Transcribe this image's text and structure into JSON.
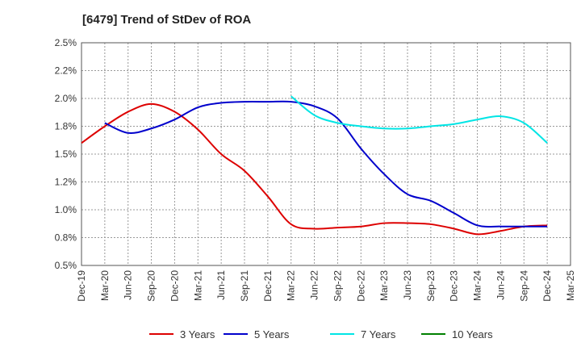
{
  "chart_data": {
    "type": "line",
    "title": "[6479]  Trend of StDev of ROA",
    "xlabel": "",
    "ylabel": "",
    "ylim": [
      0.5,
      2.5
    ],
    "y_ticks": [
      0.5,
      0.75,
      1.0,
      1.25,
      1.5,
      1.75,
      2.0,
      2.25,
      2.5
    ],
    "y_tick_labels": [
      "0.5%",
      "0.8%",
      "1.0%",
      "1.2%",
      "1.5%",
      "1.8%",
      "2.0%",
      "2.2%",
      "2.5%"
    ],
    "x_tick_labels": [
      "Dec-19",
      "Mar-20",
      "Jun-20",
      "Sep-20",
      "Dec-20",
      "Mar-21",
      "Jun-21",
      "Sep-21",
      "Dec-21",
      "Mar-22",
      "Jun-22",
      "Sep-22",
      "Dec-22",
      "Mar-23",
      "Jun-23",
      "Sep-23",
      "Dec-23",
      "Mar-24",
      "Jun-24",
      "Sep-24",
      "Dec-24",
      "Mar-25"
    ],
    "grid": true,
    "legend_position": "bottom",
    "series": [
      {
        "name": "3 Years",
        "color": "#dd0000",
        "points": [
          [
            0,
            1.6
          ],
          [
            1,
            1.75
          ],
          [
            2,
            1.88
          ],
          [
            3,
            1.95
          ],
          [
            4,
            1.88
          ],
          [
            5,
            1.72
          ],
          [
            6,
            1.5
          ],
          [
            7,
            1.35
          ],
          [
            8,
            1.12
          ],
          [
            9,
            0.87
          ],
          [
            10,
            0.83
          ],
          [
            11,
            0.84
          ],
          [
            12,
            0.85
          ],
          [
            13,
            0.88
          ],
          [
            14,
            0.88
          ],
          [
            15,
            0.87
          ],
          [
            16,
            0.83
          ],
          [
            17,
            0.78
          ],
          [
            18,
            0.81
          ],
          [
            19,
            0.85
          ],
          [
            20,
            0.86
          ]
        ]
      },
      {
        "name": "5 Years",
        "color": "#0000cc",
        "points": [
          [
            1,
            1.78
          ],
          [
            2,
            1.69
          ],
          [
            3,
            1.73
          ],
          [
            4,
            1.81
          ],
          [
            5,
            1.92
          ],
          [
            6,
            1.96
          ],
          [
            7,
            1.97
          ],
          [
            8,
            1.97
          ],
          [
            9,
            1.97
          ],
          [
            10,
            1.93
          ],
          [
            11,
            1.82
          ],
          [
            12,
            1.55
          ],
          [
            13,
            1.32
          ],
          [
            14,
            1.14
          ],
          [
            15,
            1.08
          ],
          [
            16,
            0.97
          ],
          [
            17,
            0.86
          ],
          [
            18,
            0.85
          ],
          [
            19,
            0.85
          ],
          [
            20,
            0.85
          ]
        ]
      },
      {
        "name": "7 Years",
        "color": "#00e5e5",
        "points": [
          [
            9,
            2.02
          ],
          [
            10,
            1.85
          ],
          [
            11,
            1.78
          ],
          [
            12,
            1.75
          ],
          [
            13,
            1.73
          ],
          [
            14,
            1.73
          ],
          [
            15,
            1.75
          ],
          [
            16,
            1.77
          ],
          [
            17,
            1.81
          ],
          [
            18,
            1.84
          ],
          [
            19,
            1.78
          ],
          [
            20,
            1.6
          ]
        ]
      },
      {
        "name": "10 Years",
        "color": "#008000",
        "points": []
      }
    ]
  }
}
